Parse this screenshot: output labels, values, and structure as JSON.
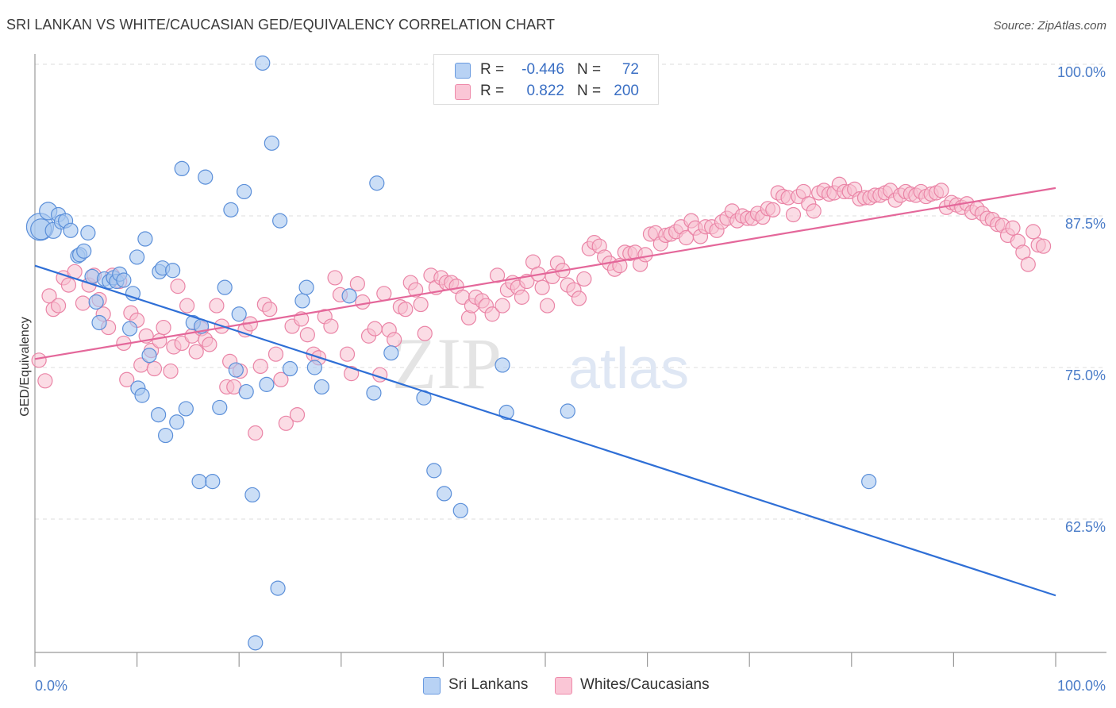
{
  "title": "SRI LANKAN VS WHITE/CAUCASIAN GED/EQUIVALENCY CORRELATION CHART",
  "source": "Source: ZipAtlas.com",
  "watermark": {
    "zip": "ZIP",
    "atlas": "atlas"
  },
  "legend": {
    "r_label": "R =",
    "n_label": "N =",
    "rows": [
      {
        "series": "Sri Lankans",
        "r": "-0.446",
        "n": "72",
        "fill": "#b8d2f4",
        "stroke": "#6a9be0"
      },
      {
        "series": "Whites/Caucasians",
        "r": "0.822",
        "n": "200",
        "fill": "#fac6d6",
        "stroke": "#ee8aaa"
      }
    ]
  },
  "colors": {
    "blue_fill": "#a9c8f0",
    "blue_stroke": "#5b8fd9",
    "blue_line": "#2f6fd6",
    "pink_fill": "#f8bfd0",
    "pink_stroke": "#ea84a6",
    "pink_line": "#e4679a",
    "tick_label": "#4a7cc8",
    "grid": "#dcdcdc"
  },
  "chart_data": {
    "type": "scatter",
    "title": "SRI LANKAN VS WHITE/CAUCASIAN GED/EQUIVALENCY CORRELATION CHART",
    "xlabel": "",
    "ylabel": "GED/Equivalency",
    "xlim": [
      0,
      100
    ],
    "ylim": [
      50.5,
      101.5
    ],
    "x_tick_labels": [
      "0.0%",
      "100.0%"
    ],
    "y_ticks": [
      62.5,
      75.0,
      87.5,
      100.0
    ],
    "y_tick_labels": [
      "62.5%",
      "75.0%",
      "87.5%",
      "100.0%"
    ],
    "grid": "horizontal dashed",
    "legend_position": "top-center",
    "series": [
      {
        "name": "Sri Lankans",
        "trend": {
          "x": [
            0,
            100
          ],
          "y": [
            83.4,
            56.2
          ]
        },
        "points": [
          [
            0.5,
            86.6
          ],
          [
            0.6,
            86.4
          ],
          [
            1.3,
            87.9
          ],
          [
            1.8,
            86.3
          ],
          [
            2.3,
            87.6
          ],
          [
            2.6,
            87.0
          ],
          [
            3.0,
            87.1
          ],
          [
            3.5,
            86.3
          ],
          [
            4.2,
            84.2
          ],
          [
            4.4,
            84.3
          ],
          [
            4.8,
            84.6
          ],
          [
            5.2,
            86.1
          ],
          [
            5.6,
            82.5
          ],
          [
            6.0,
            80.4
          ],
          [
            6.3,
            78.7
          ],
          [
            6.8,
            82.3
          ],
          [
            7.3,
            82.1
          ],
          [
            7.7,
            82.4
          ],
          [
            8.0,
            82.1
          ],
          [
            8.3,
            82.7
          ],
          [
            8.7,
            82.2
          ],
          [
            9.3,
            78.2
          ],
          [
            9.6,
            81.1
          ],
          [
            10.0,
            84.1
          ],
          [
            10.1,
            73.3
          ],
          [
            10.5,
            72.7
          ],
          [
            10.8,
            85.6
          ],
          [
            11.2,
            76.0
          ],
          [
            12.1,
            71.1
          ],
          [
            12.2,
            82.9
          ],
          [
            12.5,
            83.2
          ],
          [
            12.8,
            69.4
          ],
          [
            13.5,
            83.0
          ],
          [
            13.9,
            70.5
          ],
          [
            14.4,
            91.4
          ],
          [
            14.8,
            71.6
          ],
          [
            15.5,
            78.7
          ],
          [
            16.1,
            65.6
          ],
          [
            16.3,
            78.4
          ],
          [
            16.7,
            90.7
          ],
          [
            17.4,
            65.6
          ],
          [
            18.1,
            71.7
          ],
          [
            18.6,
            81.6
          ],
          [
            19.2,
            88.0
          ],
          [
            19.7,
            74.8
          ],
          [
            20.0,
            79.4
          ],
          [
            20.5,
            89.5
          ],
          [
            20.7,
            73.0
          ],
          [
            21.3,
            64.5
          ],
          [
            21.6,
            52.3
          ],
          [
            22.3,
            100.1
          ],
          [
            22.7,
            73.6
          ],
          [
            23.2,
            93.5
          ],
          [
            23.8,
            56.8
          ],
          [
            24.0,
            87.1
          ],
          [
            25.0,
            74.9
          ],
          [
            26.2,
            80.5
          ],
          [
            26.6,
            81.6
          ],
          [
            27.4,
            75.0
          ],
          [
            28.1,
            73.4
          ],
          [
            30.8,
            80.9
          ],
          [
            33.2,
            72.9
          ],
          [
            33.5,
            90.2
          ],
          [
            34.9,
            76.2
          ],
          [
            38.1,
            72.5
          ],
          [
            39.1,
            66.5
          ],
          [
            40.1,
            64.6
          ],
          [
            41.7,
            63.2
          ],
          [
            45.8,
            75.2
          ],
          [
            46.2,
            71.3
          ],
          [
            52.2,
            71.4
          ],
          [
            81.7,
            65.6
          ]
        ],
        "point_sizes": "first points larger (0.5 → largest)"
      },
      {
        "name": "Whites/Caucasians",
        "trend": {
          "x": [
            0,
            100
          ],
          "y": [
            75.7,
            89.8
          ]
        },
        "points": [
          [
            0.4,
            75.6
          ],
          [
            1.0,
            73.9
          ],
          [
            1.4,
            80.9
          ],
          [
            1.8,
            79.8
          ],
          [
            2.3,
            80.1
          ],
          [
            2.8,
            82.4
          ],
          [
            3.3,
            81.8
          ],
          [
            3.9,
            82.9
          ],
          [
            4.7,
            80.3
          ],
          [
            5.3,
            81.8
          ],
          [
            5.8,
            82.6
          ],
          [
            6.3,
            80.6
          ],
          [
            6.7,
            79.4
          ],
          [
            7.2,
            78.3
          ],
          [
            7.6,
            82.6
          ],
          [
            8.3,
            82.1
          ],
          [
            8.7,
            77.0
          ],
          [
            9.0,
            74.0
          ],
          [
            9.4,
            79.5
          ],
          [
            10.0,
            78.9
          ],
          [
            10.4,
            75.2
          ],
          [
            10.9,
            77.6
          ],
          [
            11.4,
            76.4
          ],
          [
            11.7,
            74.9
          ],
          [
            12.2,
            77.2
          ],
          [
            12.6,
            78.3
          ],
          [
            13.3,
            74.7
          ],
          [
            13.6,
            76.7
          ],
          [
            14.0,
            81.7
          ],
          [
            14.4,
            77.0
          ],
          [
            14.9,
            80.1
          ],
          [
            15.4,
            77.6
          ],
          [
            15.8,
            76.3
          ],
          [
            16.3,
            78.2
          ],
          [
            16.7,
            77.3
          ],
          [
            17.1,
            76.9
          ],
          [
            17.8,
            80.1
          ],
          [
            18.3,
            78.4
          ],
          [
            18.8,
            73.4
          ],
          [
            19.1,
            75.5
          ],
          [
            19.5,
            73.4
          ],
          [
            20.1,
            74.7
          ],
          [
            20.6,
            78.1
          ],
          [
            21.1,
            78.6
          ],
          [
            21.6,
            69.6
          ],
          [
            22.1,
            75.1
          ],
          [
            22.5,
            80.2
          ],
          [
            23.0,
            79.8
          ],
          [
            23.6,
            76.1
          ],
          [
            24.1,
            74.0
          ],
          [
            24.6,
            70.4
          ],
          [
            25.2,
            78.4
          ],
          [
            25.7,
            71.1
          ],
          [
            26.1,
            79.0
          ],
          [
            26.7,
            77.7
          ],
          [
            27.3,
            76.1
          ],
          [
            27.8,
            75.8
          ],
          [
            28.4,
            79.2
          ],
          [
            29.0,
            78.4
          ],
          [
            29.4,
            82.4
          ],
          [
            29.9,
            81.0
          ],
          [
            30.6,
            76.1
          ],
          [
            31.0,
            74.5
          ],
          [
            31.6,
            81.9
          ],
          [
            32.1,
            80.4
          ],
          [
            32.7,
            77.6
          ],
          [
            33.3,
            78.2
          ],
          [
            33.8,
            74.4
          ],
          [
            34.2,
            81.1
          ],
          [
            34.7,
            78.1
          ],
          [
            35.2,
            77.3
          ],
          [
            35.8,
            80.0
          ],
          [
            36.3,
            79.8
          ],
          [
            36.8,
            82.0
          ],
          [
            37.3,
            81.4
          ],
          [
            37.8,
            80.2
          ],
          [
            38.2,
            77.8
          ],
          [
            38.8,
            82.6
          ],
          [
            39.3,
            81.6
          ],
          [
            39.8,
            82.4
          ],
          [
            40.3,
            82.0
          ],
          [
            40.8,
            82.0
          ],
          [
            41.3,
            81.7
          ],
          [
            41.9,
            80.8
          ],
          [
            42.5,
            79.1
          ],
          [
            42.8,
            80.1
          ],
          [
            43.2,
            80.8
          ],
          [
            43.8,
            80.5
          ],
          [
            44.2,
            80.1
          ],
          [
            44.8,
            79.4
          ],
          [
            45.3,
            82.6
          ],
          [
            45.8,
            80.1
          ],
          [
            46.3,
            81.4
          ],
          [
            46.8,
            82.0
          ],
          [
            47.3,
            81.6
          ],
          [
            47.7,
            80.8
          ],
          [
            48.2,
            82.1
          ],
          [
            48.8,
            83.7
          ],
          [
            49.3,
            82.7
          ],
          [
            49.7,
            81.6
          ],
          [
            50.2,
            80.1
          ],
          [
            50.7,
            82.5
          ],
          [
            51.2,
            83.6
          ],
          [
            51.7,
            83.0
          ],
          [
            52.2,
            81.8
          ],
          [
            52.8,
            81.4
          ],
          [
            53.3,
            80.7
          ],
          [
            53.8,
            82.3
          ],
          [
            54.3,
            84.8
          ],
          [
            54.8,
            85.3
          ],
          [
            55.3,
            85.0
          ],
          [
            55.8,
            84.1
          ],
          [
            56.3,
            83.6
          ],
          [
            56.8,
            83.1
          ],
          [
            57.3,
            83.4
          ],
          [
            57.8,
            84.5
          ],
          [
            58.3,
            84.4
          ],
          [
            58.8,
            84.5
          ],
          [
            59.3,
            83.5
          ],
          [
            59.8,
            84.3
          ],
          [
            60.3,
            86.0
          ],
          [
            60.8,
            86.1
          ],
          [
            61.3,
            85.2
          ],
          [
            61.8,
            85.9
          ],
          [
            62.3,
            86.0
          ],
          [
            62.8,
            86.2
          ],
          [
            63.3,
            86.6
          ],
          [
            63.8,
            85.7
          ],
          [
            64.3,
            87.1
          ],
          [
            64.7,
            86.5
          ],
          [
            65.2,
            85.8
          ],
          [
            65.7,
            86.6
          ],
          [
            66.3,
            86.6
          ],
          [
            66.8,
            86.3
          ],
          [
            67.3,
            87.0
          ],
          [
            67.8,
            87.3
          ],
          [
            68.3,
            87.9
          ],
          [
            68.8,
            87.1
          ],
          [
            69.3,
            87.5
          ],
          [
            69.8,
            87.3
          ],
          [
            70.3,
            87.3
          ],
          [
            70.8,
            87.7
          ],
          [
            71.3,
            87.4
          ],
          [
            71.8,
            88.1
          ],
          [
            72.3,
            88.0
          ],
          [
            72.8,
            89.4
          ],
          [
            73.3,
            89.1
          ],
          [
            73.8,
            89.0
          ],
          [
            74.3,
            87.6
          ],
          [
            74.8,
            89.1
          ],
          [
            75.3,
            89.5
          ],
          [
            75.8,
            88.5
          ],
          [
            76.3,
            87.9
          ],
          [
            76.8,
            89.4
          ],
          [
            77.3,
            89.6
          ],
          [
            77.8,
            89.3
          ],
          [
            78.3,
            89.4
          ],
          [
            78.8,
            90.1
          ],
          [
            79.3,
            89.5
          ],
          [
            79.8,
            89.5
          ],
          [
            80.3,
            89.7
          ],
          [
            80.8,
            88.9
          ],
          [
            81.3,
            89.0
          ],
          [
            81.8,
            89.0
          ],
          [
            82.3,
            89.2
          ],
          [
            82.8,
            89.2
          ],
          [
            83.3,
            89.4
          ],
          [
            83.8,
            89.6
          ],
          [
            84.3,
            88.8
          ],
          [
            84.8,
            89.2
          ],
          [
            85.3,
            89.5
          ],
          [
            85.8,
            89.3
          ],
          [
            86.3,
            89.2
          ],
          [
            86.8,
            89.5
          ],
          [
            87.3,
            89.1
          ],
          [
            87.8,
            89.3
          ],
          [
            88.3,
            89.4
          ],
          [
            88.8,
            89.6
          ],
          [
            89.3,
            88.2
          ],
          [
            89.8,
            88.6
          ],
          [
            90.3,
            88.4
          ],
          [
            90.8,
            88.2
          ],
          [
            91.3,
            88.5
          ],
          [
            91.8,
            87.8
          ],
          [
            92.3,
            88.1
          ],
          [
            92.8,
            87.7
          ],
          [
            93.3,
            87.3
          ],
          [
            93.8,
            87.2
          ],
          [
            94.3,
            86.8
          ],
          [
            94.8,
            86.7
          ],
          [
            95.3,
            85.9
          ],
          [
            95.8,
            86.5
          ],
          [
            96.3,
            85.4
          ],
          [
            96.8,
            84.5
          ],
          [
            97.3,
            83.5
          ],
          [
            97.8,
            86.2
          ],
          [
            98.3,
            85.1
          ],
          [
            98.8,
            85.0
          ]
        ]
      }
    ]
  }
}
